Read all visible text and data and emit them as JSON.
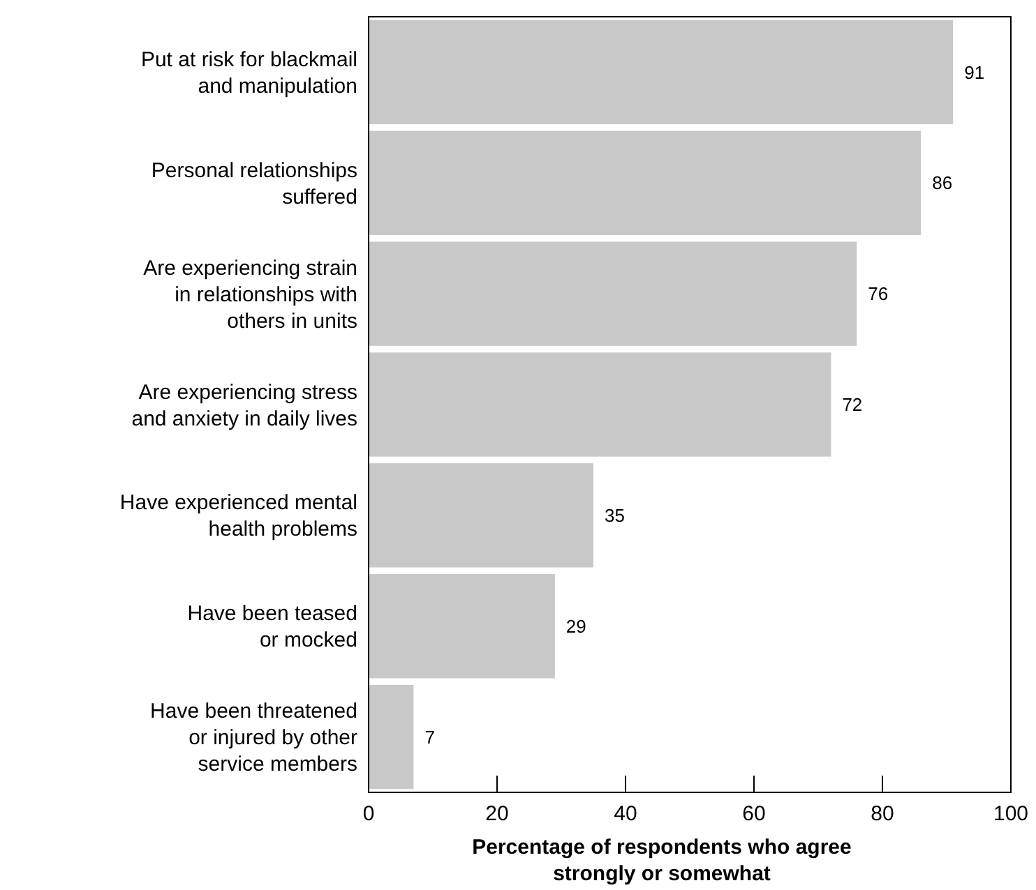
{
  "chart_data": {
    "type": "bar",
    "orientation": "horizontal",
    "categories": [
      "Put at risk for blackmail\nand manipulation",
      "Personal relationships\nsuffered",
      "Are experiencing strain\nin relationships with\nothers in units",
      "Are experiencing stress\nand anxiety in daily lives",
      "Have experienced mental\nhealth problems",
      "Have been teased\nor mocked",
      "Have been threatened\nor injured by other\nservice members"
    ],
    "values": [
      91,
      86,
      76,
      72,
      35,
      29,
      7
    ],
    "color": "#c8c8c8",
    "xlim": [
      0,
      100
    ],
    "xticks": [
      0,
      20,
      40,
      60,
      80,
      100
    ],
    "xlabel": "Percentage of respondents who agree strongly or somewhat",
    "data_labels": true
  }
}
